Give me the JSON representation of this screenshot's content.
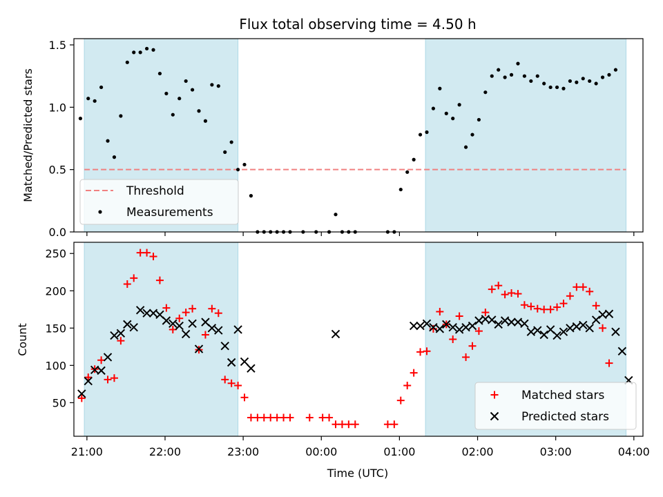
{
  "figure": {
    "title": "Flux total observing time = 4.50 h"
  },
  "chart_data": [
    {
      "type": "scatter",
      "panel": "top",
      "title": "Flux total observing time = 4.50 h",
      "xlabel": "",
      "ylabel": "Matched/Predicted stars",
      "xlim": [
        "20:50",
        "04:07"
      ],
      "ylim": [
        0,
        1.55
      ],
      "yticks": [
        0.0,
        0.5,
        1.0,
        1.5
      ],
      "ytick_labels": [
        "0.0",
        "0.5",
        "1.0",
        "1.5"
      ],
      "legend_position": "lower-left",
      "shaded_intervals": [
        [
          "20:58",
          "22:56"
        ],
        [
          "01:20",
          "03:54"
        ]
      ],
      "shade_color": "#add8e6",
      "threshold": {
        "name": "Threshold",
        "value": 0.5,
        "x_range": [
          "20:58",
          "03:54"
        ],
        "color": "#f08080",
        "style": "dashed"
      },
      "series": [
        {
          "name": "Measurements",
          "color": "#000000",
          "marker": "dot",
          "x": [
            "20:55",
            "21:01",
            "21:06",
            "21:11",
            "21:16",
            "21:21",
            "21:26",
            "21:31",
            "21:36",
            "21:41",
            "21:46",
            "21:51",
            "21:56",
            "22:01",
            "22:06",
            "22:11",
            "22:16",
            "22:21",
            "22:26",
            "22:31",
            "22:36",
            "22:41",
            "22:46",
            "22:51",
            "22:56",
            "23:01",
            "23:06",
            "23:11",
            "23:16",
            "23:21",
            "23:26",
            "23:31",
            "23:36",
            "23:41",
            "23:46",
            "23:51",
            "23:56",
            "00:01",
            "00:06",
            "00:11",
            "00:16",
            "00:21",
            "00:26",
            "00:31",
            "00:36",
            "00:41",
            "00:46",
            "00:51",
            "00:56",
            "01:01",
            "01:06",
            "01:11",
            "01:16",
            "01:21",
            "01:26",
            "01:31",
            "01:36",
            "01:41",
            "01:46",
            "01:51",
            "01:56",
            "02:01",
            "02:06",
            "02:11",
            "02:16",
            "02:21",
            "02:26",
            "02:31",
            "02:36",
            "02:41",
            "02:46",
            "02:51",
            "02:56",
            "03:01",
            "03:06",
            "03:11",
            "03:16",
            "03:21",
            "03:26",
            "03:31",
            "03:36",
            "03:41",
            "03:46",
            "03:51",
            "03:56",
            "04:01"
          ],
          "y": [
            0.91,
            1.07,
            1.05,
            1.16,
            0.73,
            0.6,
            0.93,
            1.36,
            1.44,
            1.44,
            1.47,
            1.46,
            1.27,
            1.11,
            0.94,
            1.07,
            1.21,
            1.14,
            0.97,
            0.89,
            1.18,
            1.17,
            0.64,
            0.72,
            0.5,
            0.54,
            0.29,
            0,
            0,
            0,
            0,
            0,
            0,
            null,
            0,
            null,
            0,
            null,
            0,
            0.14,
            0,
            0,
            0,
            null,
            null,
            null,
            null,
            0,
            0,
            0.34,
            0.48,
            0.58,
            0.78,
            0.8,
            0.99,
            1.15,
            0.95,
            0.91,
            1.02,
            0.68,
            0.78,
            0.9,
            1.12,
            1.25,
            1.3,
            1.24,
            1.26,
            1.35,
            1.25,
            1.21,
            1.25,
            1.19,
            1.16,
            1.16,
            1.15,
            1.21,
            1.2,
            1.23,
            1.21,
            1.19,
            1.24,
            1.26,
            1.3,
            null,
            null,
            null
          ]
        }
      ]
    },
    {
      "type": "scatter",
      "panel": "bottom",
      "xlabel": "Time (UTC)",
      "ylabel": "Count",
      "xlim": [
        "20:50",
        "04:07"
      ],
      "ylim": [
        5,
        265
      ],
      "yticks": [
        50,
        100,
        150,
        200,
        250
      ],
      "ytick_labels": [
        "50",
        "100",
        "150",
        "200",
        "250"
      ],
      "xticks": [
        "21:00",
        "22:00",
        "23:00",
        "00:00",
        "01:00",
        "02:00",
        "03:00",
        "04:00"
      ],
      "xtick_labels": [
        "21:00",
        "22:00",
        "23:00",
        "00:00",
        "01:00",
        "02:00",
        "03:00",
        "04:00"
      ],
      "legend_position": "lower-right",
      "shaded_intervals": [
        [
          "20:58",
          "22:56"
        ],
        [
          "01:20",
          "03:54"
        ]
      ],
      "shade_color": "#add8e6",
      "series": [
        {
          "name": "Matched stars",
          "color": "#ff0000",
          "marker": "plus",
          "x": [
            "20:56",
            "21:01",
            "21:06",
            "21:11",
            "21:16",
            "21:21",
            "21:26",
            "21:31",
            "21:36",
            "21:41",
            "21:46",
            "21:51",
            "21:56",
            "22:01",
            "22:06",
            "22:11",
            "22:16",
            "22:21",
            "22:26",
            "22:31",
            "22:36",
            "22:41",
            "22:46",
            "22:51",
            "22:56",
            "23:01",
            "23:06",
            "23:11",
            "23:16",
            "23:21",
            "23:26",
            "23:31",
            "23:36",
            "23:41",
            "23:46",
            "23:51",
            "23:56",
            "00:01",
            "00:06",
            "00:11",
            "00:16",
            "00:21",
            "00:26",
            "00:31",
            "00:36",
            "00:41",
            "00:46",
            "00:51",
            "00:56",
            "01:01",
            "01:06",
            "01:11",
            "01:16",
            "01:21",
            "01:26",
            "01:31",
            "01:36",
            "01:41",
            "01:46",
            "01:51",
            "01:56",
            "02:01",
            "02:06",
            "02:11",
            "02:16",
            "02:21",
            "02:26",
            "02:31",
            "02:36",
            "02:41",
            "02:46",
            "02:51",
            "02:56",
            "03:01",
            "03:06",
            "03:11",
            "03:16",
            "03:21",
            "03:26",
            "03:31",
            "03:36",
            "03:41",
            "03:46",
            "03:51",
            "03:56",
            "04:01"
          ],
          "y": [
            56,
            84,
            95,
            107,
            81,
            83,
            133,
            209,
            217,
            251,
            251,
            246,
            214,
            177,
            148,
            163,
            171,
            176,
            121,
            141,
            176,
            170,
            81,
            76,
            73,
            57,
            30,
            30,
            30,
            30,
            30,
            30,
            30,
            null,
            null,
            30,
            null,
            30,
            30,
            21,
            21,
            21,
            21,
            null,
            null,
            null,
            null,
            21,
            21,
            53,
            73,
            90,
            118,
            119,
            149,
            172,
            155,
            135,
            166,
            111,
            126,
            146,
            171,
            202,
            207,
            195,
            197,
            196,
            181,
            179,
            176,
            175,
            175,
            178,
            183,
            193,
            205,
            205,
            199,
            180,
            150,
            103,
            null,
            null,
            null,
            null
          ]
        },
        {
          "name": "Predicted stars",
          "color": "#000000",
          "marker": "x",
          "x": [
            "20:56",
            "21:01",
            "21:06",
            "21:11",
            "21:16",
            "21:21",
            "21:26",
            "21:31",
            "21:36",
            "21:41",
            "21:46",
            "21:51",
            "21:56",
            "22:01",
            "22:06",
            "22:11",
            "22:16",
            "22:21",
            "22:26",
            "22:31",
            "22:36",
            "22:41",
            "22:46",
            "22:51",
            "22:56",
            "23:01",
            "23:06",
            "23:11",
            "00:11",
            "01:11",
            "01:16",
            "01:21",
            "01:26",
            "01:31",
            "01:36",
            "01:41",
            "01:46",
            "01:51",
            "01:56",
            "02:01",
            "02:06",
            "02:11",
            "02:16",
            "02:21",
            "02:26",
            "02:31",
            "02:36",
            "02:41",
            "02:46",
            "02:51",
            "02:56",
            "03:01",
            "03:06",
            "03:11",
            "03:16",
            "03:21",
            "03:26",
            "03:31",
            "03:36",
            "03:41",
            "03:46",
            "03:51",
            "03:56",
            "04:01"
          ],
          "y": [
            62,
            79,
            94,
            93,
            111,
            140,
            143,
            155,
            151,
            174,
            170,
            170,
            168,
            160,
            156,
            153,
            142,
            156,
            122,
            158,
            150,
            147,
            126,
            104,
            148,
            105,
            96,
            null,
            142,
            153,
            153,
            156,
            151,
            149,
            155,
            151,
            148,
            151,
            153,
            160,
            162,
            161,
            155,
            160,
            158,
            158,
            156,
            145,
            147,
            141,
            148,
            140,
            145,
            150,
            152,
            154,
            150,
            161,
            168,
            169,
            145,
            119,
            80,
            null
          ]
        }
      ]
    }
  ]
}
